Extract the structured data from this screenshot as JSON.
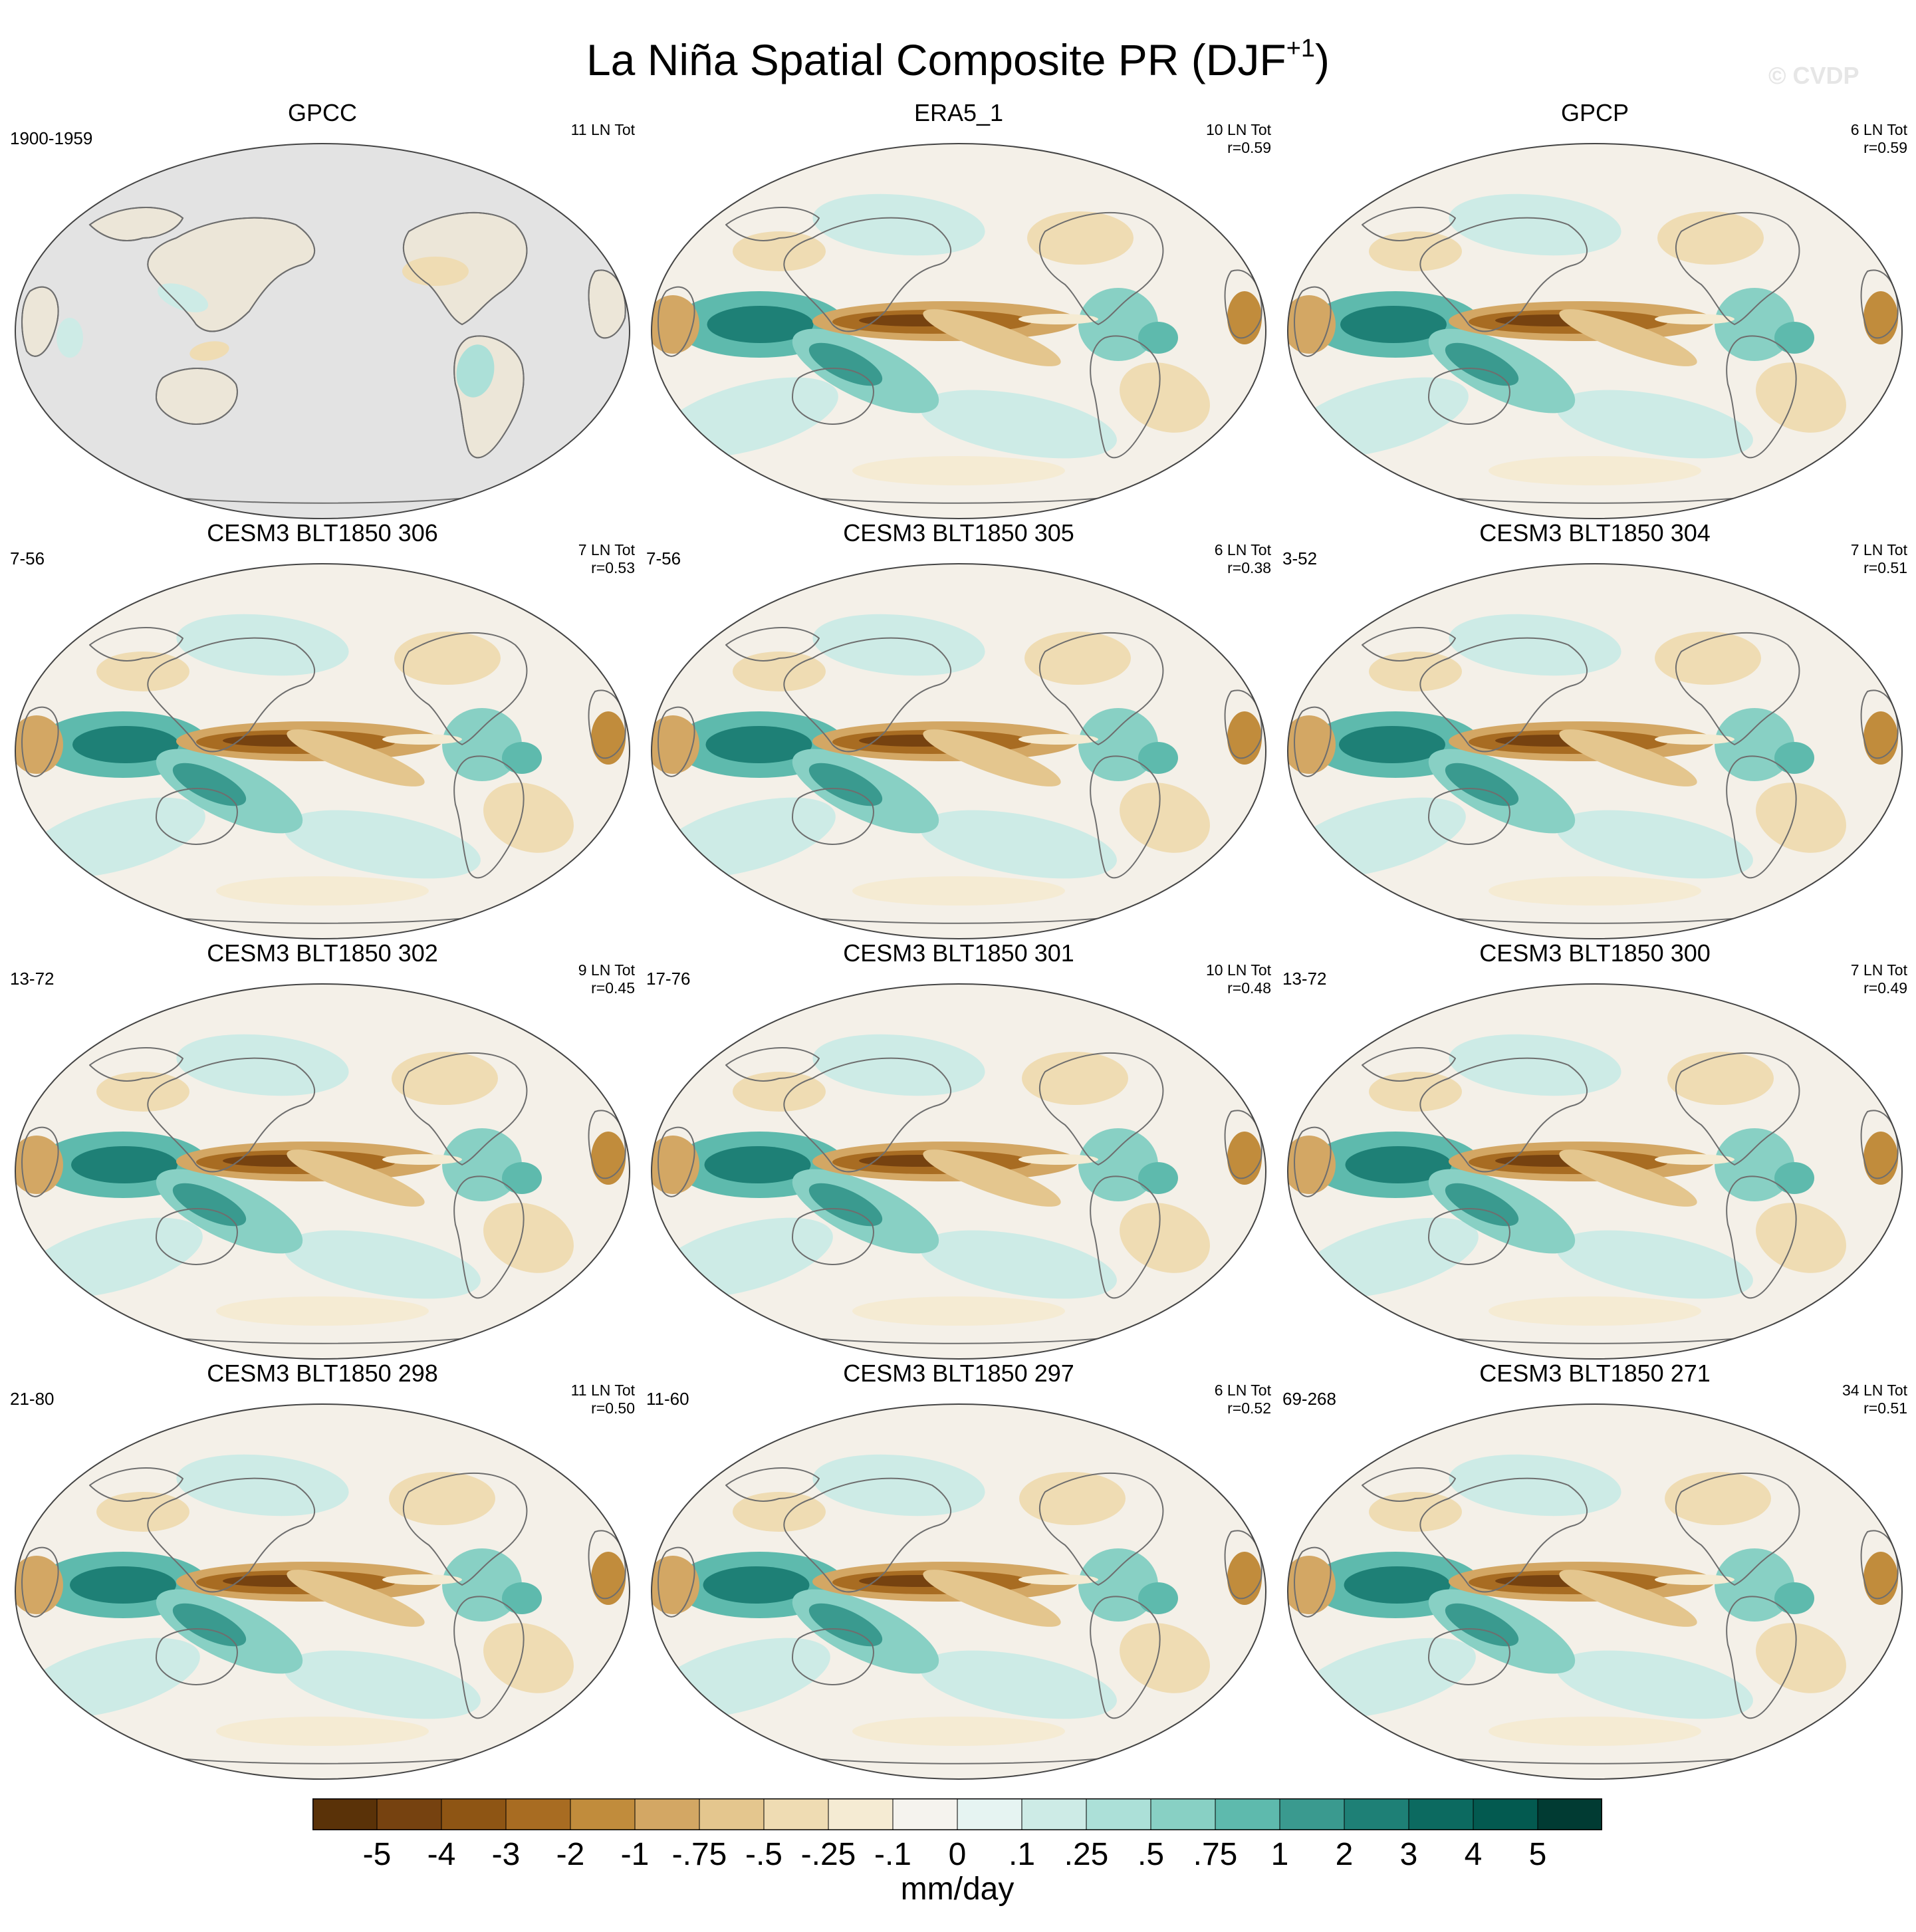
{
  "title": {
    "main": "La Niña Spatial Composite PR (DJF",
    "sup": "+1",
    "close": ")"
  },
  "watermark": "© CVDP",
  "colors": {
    "land": "#e3e3e3",
    "background": "#f4f0e8",
    "coast": "#6e6e6e"
  },
  "panels": [
    {
      "title": "GPCC",
      "period": "1900-1959",
      "count": "11 LN Tot",
      "corr": "",
      "land_only": true
    },
    {
      "title": "ERA5_1",
      "period": "",
      "count": "10 LN Tot",
      "corr": "r=0.59",
      "land_only": false
    },
    {
      "title": "GPCP",
      "period": "",
      "count": "6 LN Tot",
      "corr": "r=0.59",
      "land_only": false
    },
    {
      "title": "CESM3 BLT1850 306",
      "period": "7-56",
      "count": "7 LN Tot",
      "corr": "r=0.53",
      "land_only": false
    },
    {
      "title": "CESM3 BLT1850 305",
      "period": "7-56",
      "count": "6 LN Tot",
      "corr": "r=0.38",
      "land_only": false
    },
    {
      "title": "CESM3 BLT1850 304",
      "period": "3-52",
      "count": "7 LN Tot",
      "corr": "r=0.51",
      "land_only": false
    },
    {
      "title": "CESM3 BLT1850 302",
      "period": "13-72",
      "count": "9 LN Tot",
      "corr": "r=0.45",
      "land_only": false
    },
    {
      "title": "CESM3 BLT1850 301",
      "period": "17-76",
      "count": "10 LN Tot",
      "corr": "r=0.48",
      "land_only": false
    },
    {
      "title": "CESM3 BLT1850 300",
      "period": "13-72",
      "count": "7 LN Tot",
      "corr": "r=0.49",
      "land_only": false
    },
    {
      "title": "CESM3 BLT1850 298",
      "period": "21-80",
      "count": "11 LN Tot",
      "corr": "r=0.50",
      "land_only": false
    },
    {
      "title": "CESM3 BLT1850 297",
      "period": "11-60",
      "count": "6 LN Tot",
      "corr": "r=0.52",
      "land_only": false
    },
    {
      "title": "CESM3 BLT1850 271",
      "period": "69-268",
      "count": "34 LN Tot",
      "corr": "r=0.51",
      "land_only": false
    }
  ],
  "colorbar": {
    "units": "mm/day",
    "labels": [
      "-5",
      "-4",
      "-3",
      "-2",
      "-1",
      "-.75",
      "-.5",
      "-.25",
      "-.1",
      "0",
      ".1",
      ".25",
      ".5",
      ".75",
      "1",
      "2",
      "3",
      "4",
      "5"
    ],
    "colors": [
      "#5a3208",
      "#764210",
      "#8e5514",
      "#a86c22",
      "#c18c3c",
      "#d3a764",
      "#e4c68e",
      "#efdcb3",
      "#f5ebd3",
      "#f5f3ee",
      "#e6f4f2",
      "#cdebe6",
      "#ace0d8",
      "#88d0c4",
      "#5ebaad",
      "#3a9a8f",
      "#1e8076",
      "#0c6a60",
      "#035a50",
      "#013b33"
    ]
  }
}
